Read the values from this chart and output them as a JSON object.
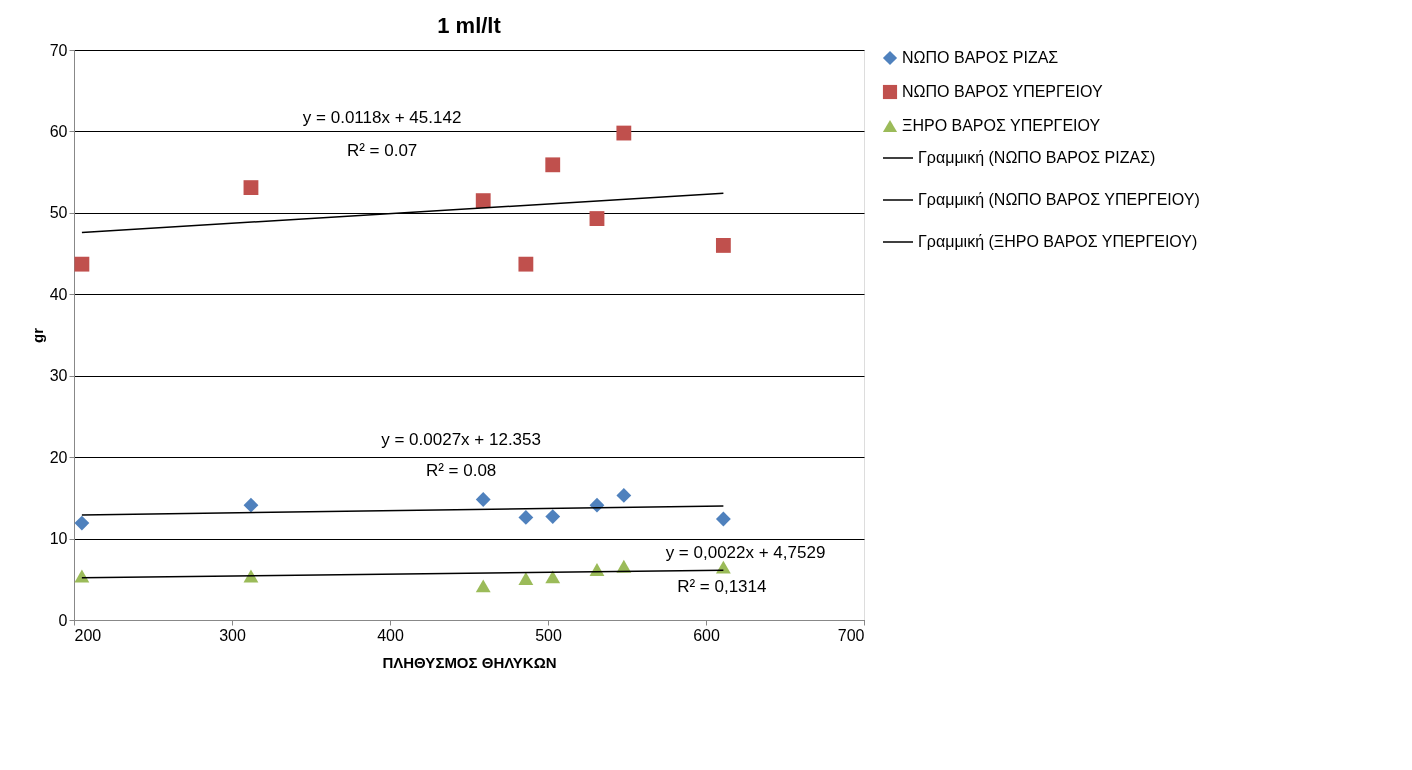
{
  "chart_data": {
    "type": "scatter",
    "title": "1 ml/lt",
    "xlabel": "ΠΛΗΘΥΣΜΟΣ ΘΗΛΥΚΩΝ",
    "ylabel": "gr",
    "xlim": [
      200,
      700
    ],
    "xticks": [
      200,
      300,
      400,
      500,
      600,
      700
    ],
    "ylim": [
      0,
      70
    ],
    "yticks": [
      0,
      10,
      20,
      30,
      40,
      50,
      60,
      70
    ],
    "grid": "y",
    "legend": "right",
    "series": [
      {
        "name": "ΝΩΠΟ ΒΑΡΟΣ ΡΙΖΑΣ",
        "marker": "diamond",
        "color": "#4f81bd",
        "x": [
          205,
          312,
          459,
          486,
          503,
          531,
          548,
          611
        ],
        "values": [
          11.9,
          14.1,
          14.8,
          12.6,
          12.7,
          14.1,
          15.3,
          12.4
        ]
      },
      {
        "name": "ΝΩΠΟ ΒΑΡΟΣ ΥΠΕΡΓΕΙΟΥ",
        "marker": "square",
        "color": "#c0504d",
        "x": [
          205,
          312,
          459,
          486,
          503,
          531,
          548,
          611
        ],
        "values": [
          43.7,
          53.1,
          51.5,
          43.7,
          55.9,
          49.3,
          59.8,
          46.0
        ]
      },
      {
        "name": "ΞΗΡΟ ΒΑΡΟΣ ΥΠΕΡΓΕΙΟΥ",
        "marker": "triangle",
        "color": "#9bbb59",
        "x": [
          205,
          312,
          459,
          486,
          503,
          531,
          548,
          611
        ],
        "values": [
          5.4,
          5.4,
          4.2,
          5.1,
          5.3,
          6.2,
          6.6,
          6.5
        ]
      },
      {
        "name": "Γραμμική (ΝΩΠΟ ΒΑΡΟΣ ΡΙΖΑΣ)",
        "type": "line",
        "marker": "none",
        "line_style": "solid",
        "color": "#000000",
        "x": [
          205,
          611
        ],
        "values": [
          12.9,
          14.0
        ]
      },
      {
        "name": "Γραμμική (ΝΩΠΟ ΒΑΡΟΣ ΥΠΕΡΓΕΙΟΥ)",
        "type": "line",
        "marker": "none",
        "line_style": "solid",
        "color": "#000000",
        "x": [
          205,
          611
        ],
        "values": [
          47.6,
          52.4
        ]
      },
      {
        "name": "Γραμμική (ΞΗΡΟ ΒΑΡΟΣ ΥΠΕΡΓΕΙΟΥ)",
        "type": "line",
        "marker": "none",
        "line_style": "solid",
        "color": "#000000",
        "x": [
          205,
          611
        ],
        "values": [
          5.2,
          6.1
        ]
      }
    ],
    "annotations": [
      "y = 0.0118x + 45.142",
      "R² = 0.07",
      "y = 0.0027x + 12.353",
      "R² = 0.08",
      "y = 0,0022x + 4,7529",
      "R² = 0,1314"
    ]
  }
}
